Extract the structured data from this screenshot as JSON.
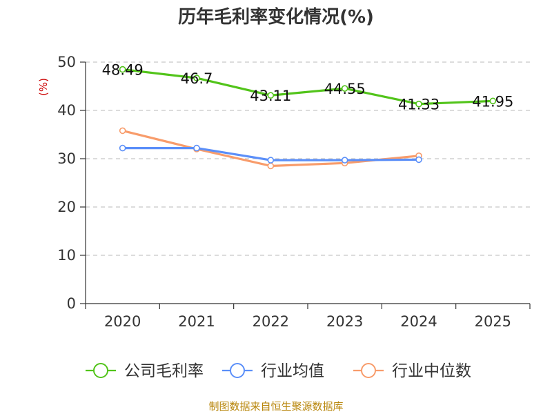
{
  "chart_data": {
    "type": "line",
    "title": "历年毛利率变化情况(%)",
    "ylabel": "(%)",
    "xlabel": "",
    "ylim": [
      0,
      50
    ],
    "yticks": [
      0,
      10,
      20,
      30,
      40,
      50
    ],
    "categories": [
      "2020",
      "2021",
      "2022",
      "2023",
      "2024",
      "2025"
    ],
    "grid": true,
    "legend_position": "bottom",
    "series": [
      {
        "name": "公司毛利率",
        "color": "#52c41a",
        "values": [
          48.49,
          46.7,
          43.11,
          44.55,
          41.33,
          41.95
        ],
        "labels": [
          "48.49",
          "46.7",
          "43.11",
          "44.55",
          "41.33",
          "41.95"
        ]
      },
      {
        "name": "行业均值",
        "color": "#5b8ff9",
        "values": [
          32.2,
          32.2,
          29.7,
          29.7,
          29.8,
          null
        ]
      },
      {
        "name": "行业中位数",
        "color": "#f89c6b",
        "values": [
          35.8,
          32.0,
          28.5,
          29.1,
          30.6,
          null
        ]
      }
    ],
    "source": "制图数据来自恒生聚源数据库"
  }
}
